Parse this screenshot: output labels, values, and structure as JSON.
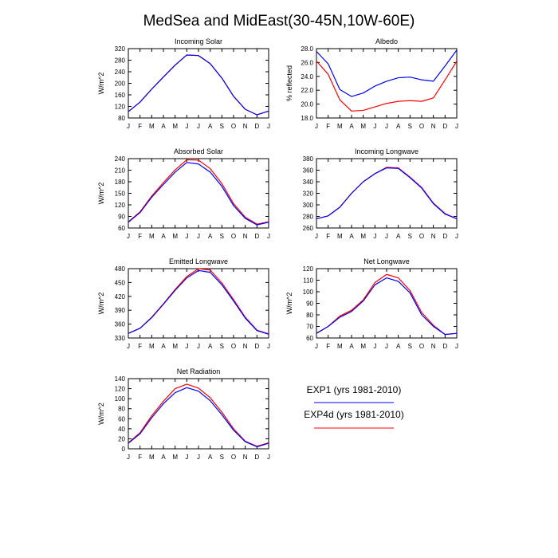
{
  "title": "MedSea and MidEast(30-45N,10W-60E)",
  "colors": {
    "exp1": "#0000ff",
    "exp4d": "#ff0000",
    "axis": "#000000"
  },
  "legend": {
    "items": [
      {
        "label": "EXP1 (yrs 1981-2010)",
        "color": "#0000ff"
      },
      {
        "label": "EXP4d (yrs 1981-2010)",
        "color": "#ff0000"
      }
    ]
  },
  "chart_data": [
    {
      "type": "line",
      "title": "Incoming Solar",
      "ylabel": "W/m^2",
      "categories": [
        "J",
        "F",
        "M",
        "A",
        "M",
        "J",
        "J",
        "A",
        "S",
        "O",
        "N",
        "D",
        "J"
      ],
      "ylim": [
        80,
        320
      ],
      "yticks": [
        80,
        120,
        160,
        200,
        240,
        280,
        320
      ],
      "yticklabels": [
        "80",
        "120",
        "160",
        "200",
        "240",
        "280",
        "320"
      ],
      "series": [
        {
          "name": "EXP1 (yrs 1981-2010)",
          "color": "#0000ff",
          "values": [
            102,
            135,
            180,
            222,
            263,
            298,
            296,
            268,
            218,
            155,
            110,
            91,
            104
          ]
        },
        {
          "name": "EXP4d (yrs 1981-2010)",
          "color": "#ff0000",
          "values": [
            102,
            135,
            180,
            222,
            263,
            298,
            296,
            268,
            218,
            155,
            110,
            91,
            104
          ]
        }
      ]
    },
    {
      "type": "line",
      "title": "Albedo",
      "ylabel": "% reflected",
      "categories": [
        "J",
        "F",
        "M",
        "A",
        "M",
        "J",
        "J",
        "A",
        "S",
        "O",
        "N",
        "D",
        "J"
      ],
      "ylim": [
        18.0,
        28.0
      ],
      "yticks": [
        18,
        20,
        22,
        24,
        26,
        28
      ],
      "yticklabels": [
        "18.0",
        "20.0",
        "22.0",
        "24.0",
        "26.0",
        "28.0"
      ],
      "series": [
        {
          "name": "EXP1 (yrs 1981-2010)",
          "color": "#0000ff",
          "values": [
            27.6,
            25.8,
            22.1,
            21.1,
            21.6,
            22.6,
            23.3,
            23.8,
            23.9,
            23.5,
            23.3,
            25.5,
            27.8
          ]
        },
        {
          "name": "EXP4d (yrs 1981-2010)",
          "color": "#ff0000",
          "values": [
            26.2,
            24.3,
            20.6,
            19.0,
            19.1,
            19.6,
            20.1,
            20.4,
            20.5,
            20.4,
            20.9,
            23.5,
            26.2
          ]
        }
      ]
    },
    {
      "type": "line",
      "title": "Absorbed Solar",
      "ylabel": "W/m^2",
      "categories": [
        "J",
        "F",
        "M",
        "A",
        "M",
        "J",
        "J",
        "A",
        "S",
        "O",
        "N",
        "D",
        "J"
      ],
      "ylim": [
        60,
        240
      ],
      "yticks": [
        60,
        90,
        120,
        150,
        180,
        210,
        240
      ],
      "yticklabels": [
        "60",
        "90",
        "120",
        "150",
        "180",
        "210",
        "240"
      ],
      "series": [
        {
          "name": "EXP1 (yrs 1981-2010)",
          "color": "#0000ff",
          "values": [
            75,
            100,
            140,
            173,
            205,
            230,
            226,
            205,
            168,
            118,
            85,
            68,
            75
          ]
        },
        {
          "name": "EXP4d (yrs 1981-2010)",
          "color": "#ff0000",
          "values": [
            76,
            102,
            143,
            178,
            211,
            237,
            236,
            214,
            175,
            123,
            88,
            70,
            76
          ]
        }
      ]
    },
    {
      "type": "line",
      "title": "Incoming Longwave",
      "ylabel": "",
      "categories": [
        "J",
        "F",
        "M",
        "A",
        "M",
        "J",
        "J",
        "A",
        "S",
        "O",
        "N",
        "D",
        "J"
      ],
      "ylim": [
        260,
        380
      ],
      "yticks": [
        260,
        280,
        300,
        320,
        340,
        360,
        380
      ],
      "yticklabels": [
        "260",
        "280",
        "300",
        "320",
        "340",
        "360",
        "380"
      ],
      "series": [
        {
          "name": "EXP1 (yrs 1981-2010)",
          "color": "#0000ff",
          "values": [
            276,
            281,
            296,
            320,
            340,
            354,
            364,
            363,
            347,
            329,
            302,
            284,
            276
          ]
        },
        {
          "name": "EXP4d (yrs 1981-2010)",
          "color": "#ff0000",
          "values": [
            276,
            281,
            296,
            320,
            340,
            354,
            365,
            364,
            348,
            330,
            303,
            285,
            276
          ]
        }
      ]
    },
    {
      "type": "line",
      "title": "Emitted Longwave",
      "ylabel": "W/m^2",
      "categories": [
        "J",
        "F",
        "M",
        "A",
        "M",
        "J",
        "J",
        "A",
        "S",
        "O",
        "N",
        "D",
        "J"
      ],
      "ylim": [
        330,
        480
      ],
      "yticks": [
        330,
        360,
        390,
        420,
        450,
        480
      ],
      "yticklabels": [
        "330",
        "360",
        "390",
        "420",
        "450",
        "480"
      ],
      "series": [
        {
          "name": "EXP1 (yrs 1981-2010)",
          "color": "#0000ff",
          "values": [
            340,
            351,
            374,
            403,
            433,
            460,
            476,
            472,
            445,
            410,
            373,
            346,
            338
          ]
        },
        {
          "name": "EXP4d (yrs 1981-2010)",
          "color": "#ff0000",
          "values": [
            340,
            351,
            375,
            404,
            435,
            463,
            480,
            477,
            449,
            413,
            375,
            347,
            339
          ]
        }
      ]
    },
    {
      "type": "line",
      "title": "Net Longwave",
      "ylabel": "W/m^2",
      "categories": [
        "J",
        "F",
        "M",
        "A",
        "M",
        "J",
        "J",
        "A",
        "S",
        "O",
        "N",
        "D",
        "J"
      ],
      "ylim": [
        60,
        120
      ],
      "yticks": [
        60,
        70,
        80,
        90,
        100,
        110,
        120
      ],
      "yticklabels": [
        "60",
        "70",
        "80",
        "90",
        "100",
        "110",
        "120"
      ],
      "series": [
        {
          "name": "EXP1 (yrs 1981-2010)",
          "color": "#0000ff",
          "values": [
            64,
            70,
            78,
            83,
            92,
            106,
            112,
            109,
            99,
            80,
            70,
            63,
            64
          ]
        },
        {
          "name": "EXP4d (yrs 1981-2010)",
          "color": "#ff0000",
          "values": [
            64,
            70,
            79,
            84,
            93,
            108,
            115,
            112,
            101,
            82,
            71,
            63,
            64
          ]
        }
      ]
    },
    {
      "type": "line",
      "title": "Net Radiation",
      "ylabel": "W/m^2",
      "categories": [
        "J",
        "F",
        "M",
        "A",
        "M",
        "J",
        "J",
        "A",
        "S",
        "O",
        "N",
        "D",
        "J"
      ],
      "ylim": [
        0,
        140
      ],
      "yticks": [
        0,
        20,
        40,
        60,
        80,
        100,
        120,
        140
      ],
      "yticklabels": [
        "0",
        "20",
        "40",
        "60",
        "80",
        "100",
        "120",
        "140"
      ],
      "series": [
        {
          "name": "EXP1 (yrs 1981-2010)",
          "color": "#0000ff",
          "values": [
            11,
            30,
            62,
            90,
            112,
            122,
            115,
            96,
            68,
            37,
            14,
            4,
            11
          ]
        },
        {
          "name": "EXP4d (yrs 1981-2010)",
          "color": "#ff0000",
          "values": [
            12,
            32,
            66,
            95,
            120,
            129,
            121,
            102,
            73,
            40,
            15,
            5,
            12
          ]
        }
      ]
    }
  ]
}
